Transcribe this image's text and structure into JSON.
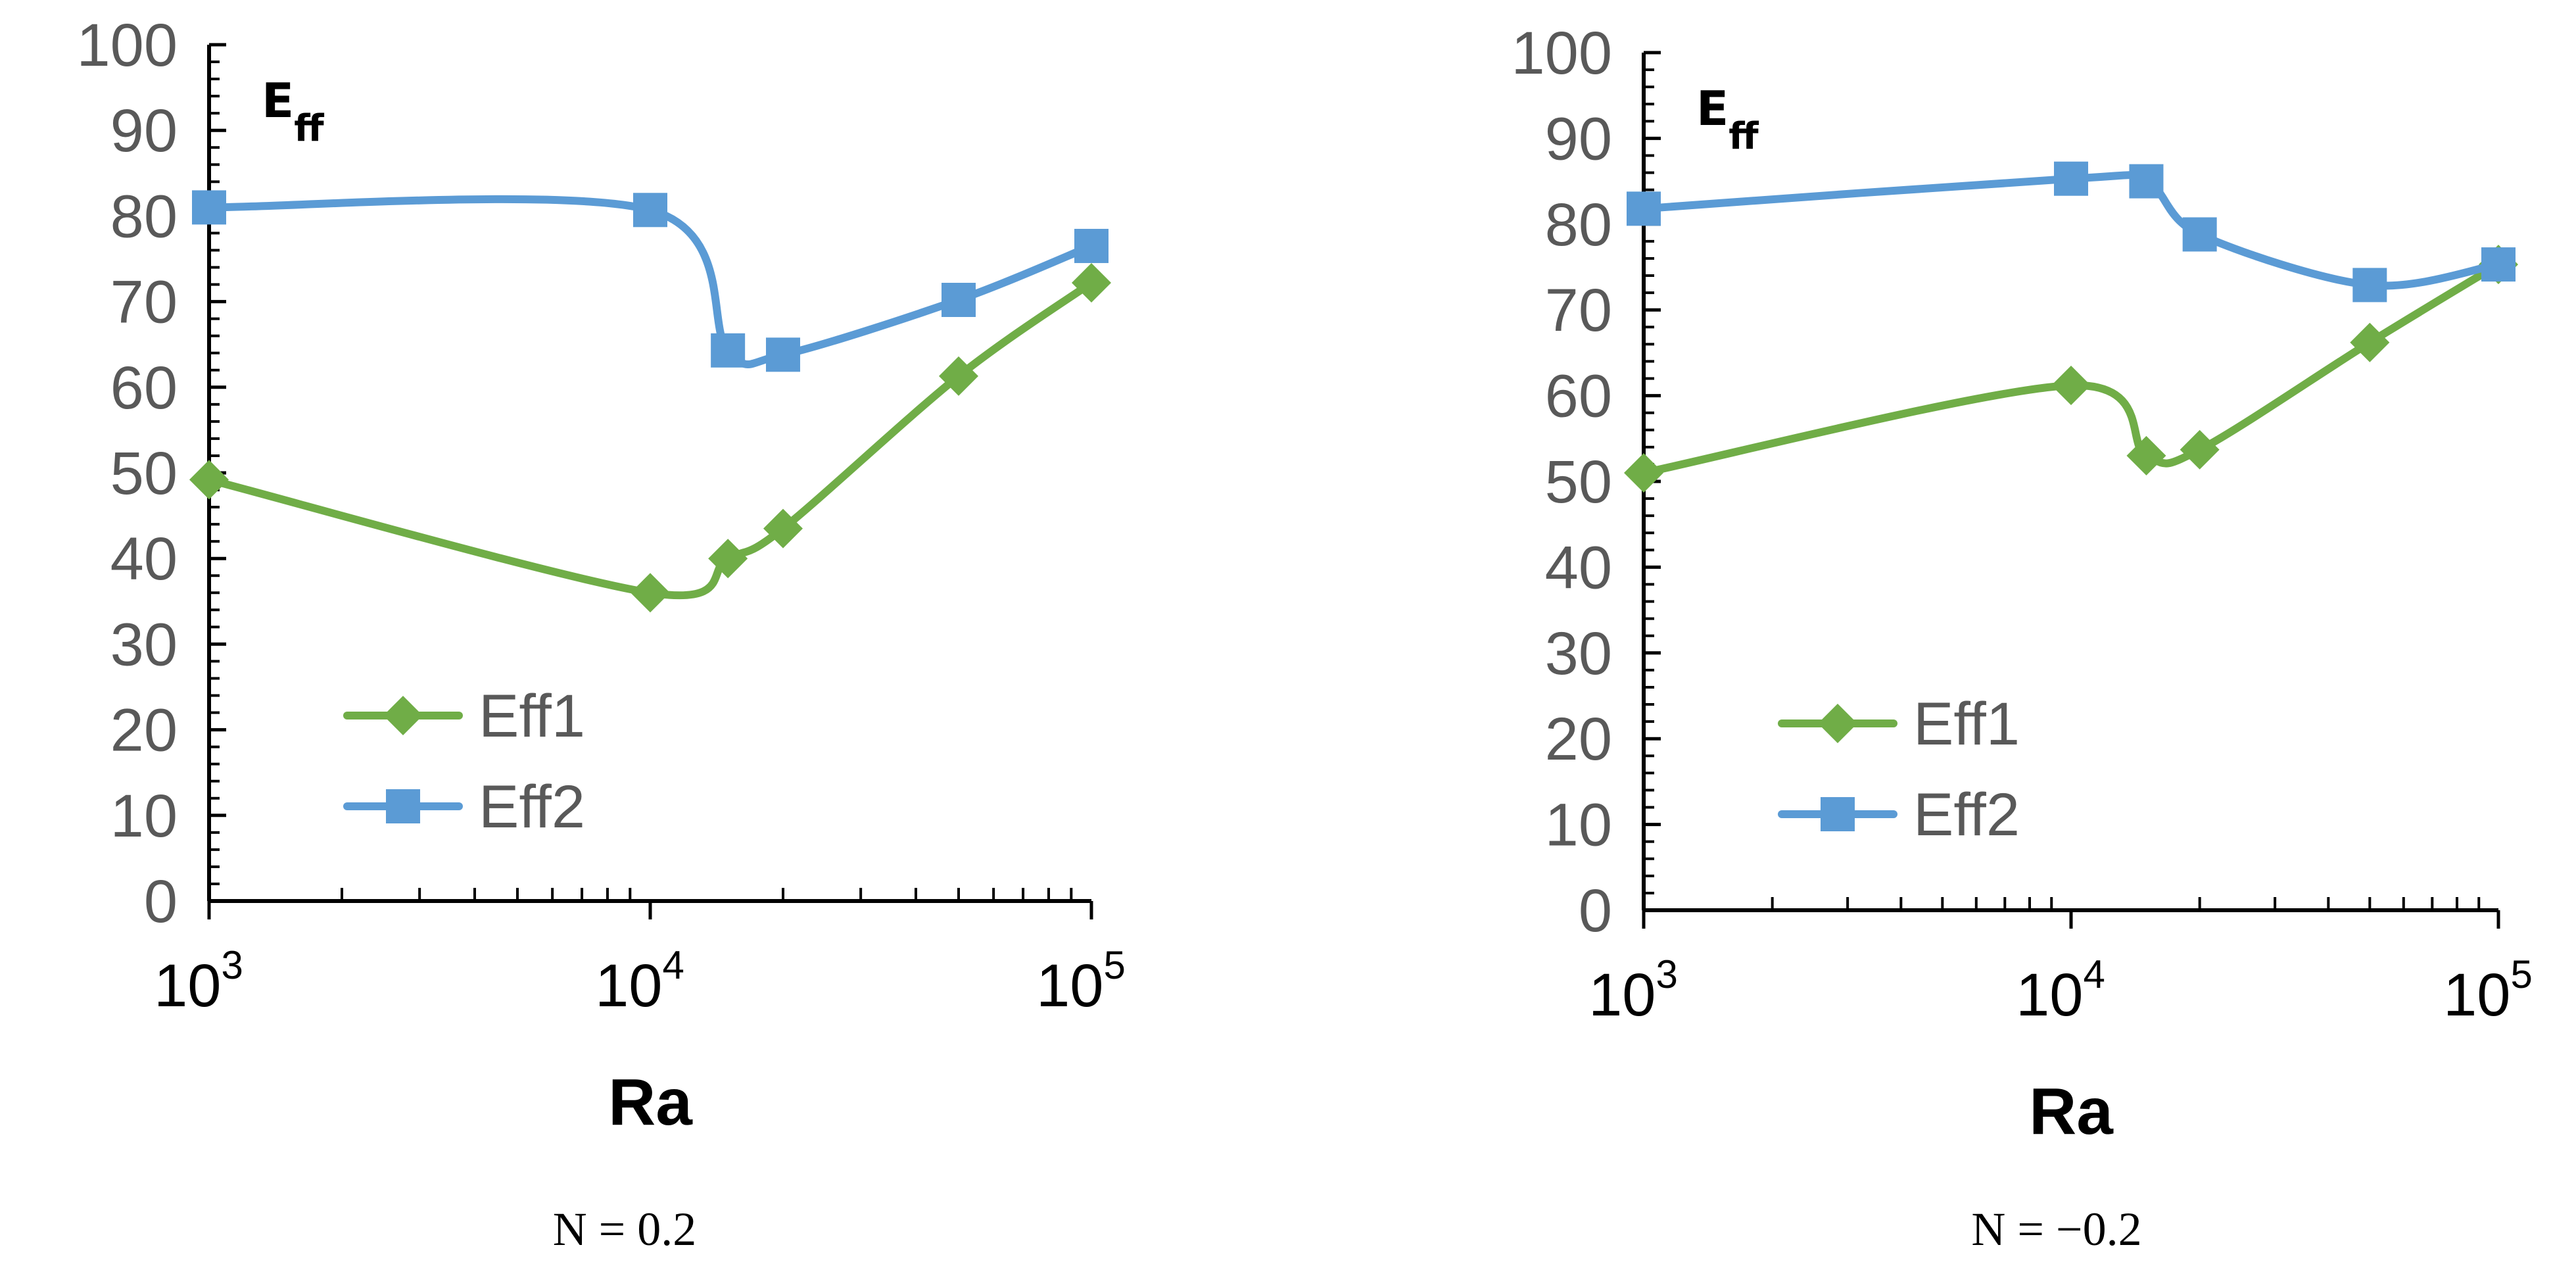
{
  "colors": {
    "eff1": "#70AD47",
    "eff2": "#5B9BD5",
    "axis": "#000000",
    "tick_label": "#595959"
  },
  "chart_data": [
    {
      "type": "line",
      "caption": "N = 0.2",
      "panel_label": {
        "base": "E",
        "sub": "ff"
      },
      "xlabel": "Ra",
      "ylabel": "",
      "x_scale": "log",
      "xlim": [
        1000,
        100000
      ],
      "ylim": [
        0,
        100
      ],
      "y_ticks": [
        "0",
        "10",
        "20",
        "30",
        "40",
        "50",
        "60",
        "70",
        "80",
        "90",
        "100"
      ],
      "x_ticks": [
        {
          "value": 1000,
          "base": "10",
          "exp": "3"
        },
        {
          "value": 10000,
          "base": "10",
          "exp": "4"
        },
        {
          "value": 100000,
          "base": "10",
          "exp": "5"
        }
      ],
      "legend": {
        "position": "lower-left",
        "entries": [
          "Eff1",
          "Eff2"
        ]
      },
      "series": [
        {
          "name": "Eff1",
          "marker": "diamond",
          "x": [
            1000,
            10000,
            15000,
            20000,
            50000,
            100000
          ],
          "values": [
            49.2,
            36.0,
            40.0,
            43.5,
            61.3,
            72.2
          ]
        },
        {
          "name": "Eff2",
          "marker": "square",
          "x": [
            1000,
            10000,
            15000,
            20000,
            50000,
            100000
          ],
          "values": [
            81.0,
            80.7,
            64.3,
            63.8,
            70.2,
            76.5
          ]
        }
      ]
    },
    {
      "type": "line",
      "caption": "N = −0.2",
      "panel_label": {
        "base": "E",
        "sub": "ff"
      },
      "xlabel": "Ra",
      "ylabel": "",
      "x_scale": "log",
      "xlim": [
        1000,
        100000
      ],
      "ylim": [
        0,
        100
      ],
      "y_ticks": [
        "0",
        "10",
        "20",
        "30",
        "40",
        "50",
        "60",
        "70",
        "80",
        "90",
        "100"
      ],
      "x_ticks": [
        {
          "value": 1000,
          "base": "10",
          "exp": "3"
        },
        {
          "value": 10000,
          "base": "10",
          "exp": "4"
        },
        {
          "value": 100000,
          "base": "10",
          "exp": "5"
        }
      ],
      "legend": {
        "position": "lower-left",
        "entries": [
          "Eff1",
          "Eff2"
        ]
      },
      "series": [
        {
          "name": "Eff1",
          "marker": "diamond",
          "x": [
            1000,
            10000,
            15000,
            20000,
            50000,
            100000
          ],
          "values": [
            51.0,
            61.2,
            53.0,
            53.7,
            66.2,
            75.3
          ]
        },
        {
          "name": "Eff2",
          "marker": "square",
          "x": [
            1000,
            10000,
            15000,
            20000,
            50000,
            100000
          ],
          "values": [
            81.8,
            85.3,
            85.0,
            78.8,
            72.9,
            75.3
          ]
        }
      ]
    }
  ]
}
